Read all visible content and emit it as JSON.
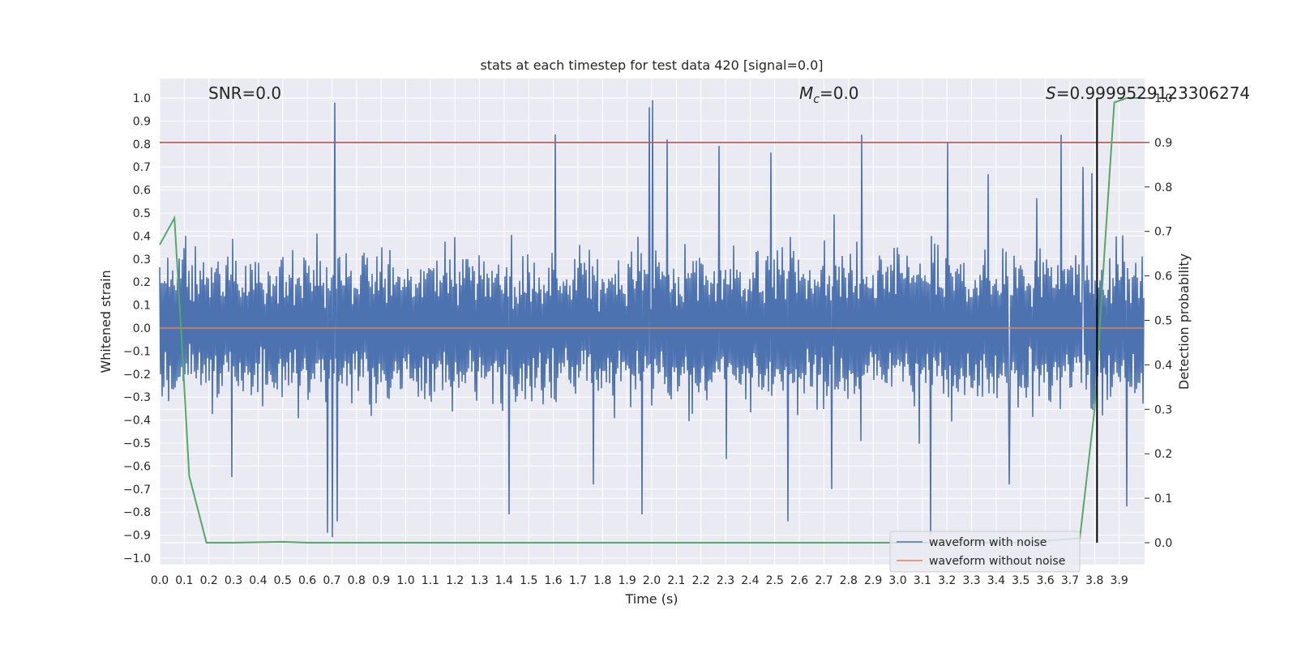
{
  "chart_data": {
    "type": "line",
    "title": "stats at each timestep for test data 420 [signal=0.0]",
    "xlabel": "Time (s)",
    "ylabel": "Whitened strain",
    "y2label": "Detection probability",
    "xlim": [
      0.0,
      4.0
    ],
    "ylim": [
      -1.05,
      1.1
    ],
    "y2lim": [
      -0.05,
      1.0
    ],
    "x_ticks": [
      "0.0",
      "0.1",
      "0.2",
      "0.3",
      "0.4",
      "0.5",
      "0.6",
      "0.7",
      "0.8",
      "0.9",
      "1.0",
      "1.1",
      "1.2",
      "1.3",
      "1.4",
      "1.5",
      "1.6",
      "1.7",
      "1.8",
      "1.9",
      "2.0",
      "2.1",
      "2.2",
      "2.3",
      "2.4",
      "2.5",
      "2.6",
      "2.7",
      "2.8",
      "2.9",
      "3.0",
      "3.1",
      "3.2",
      "3.3",
      "3.4",
      "3.5",
      "3.6",
      "3.7",
      "3.8",
      "3.9"
    ],
    "y_ticks": [
      "1.0",
      "0.9",
      "0.8",
      "0.7",
      "0.6",
      "0.5",
      "0.4",
      "0.3",
      "0.2",
      "0.1",
      "0.0",
      "-0.1",
      "-0.2",
      "-0.3",
      "-0.4",
      "-0.5",
      "-0.6",
      "-0.7",
      "-0.8",
      "-0.9",
      "-1.0"
    ],
    "y2_ticks": [
      "1.0",
      "0.9",
      "0.8",
      "0.7",
      "0.6",
      "0.5",
      "0.4",
      "0.3",
      "0.2",
      "0.1",
      "0.0"
    ],
    "grid": true,
    "legend_position": "bottom-right",
    "annotations": {
      "snr": "SNR=0.0",
      "mc_symbol": "M",
      "mc_sub": "c",
      "mc_value": "=0.0",
      "s_symbol": "S",
      "s_value": "=0.9999529123306274"
    },
    "series": [
      {
        "name": "waveform with noise",
        "axis": "left",
        "color": "#4c72b0",
        "style": "dense noise, roughly ±0.3 typical with peaks near ±1.0",
        "peaks_x": [
          0.71,
          1.99,
          2.0,
          2.06,
          2.85,
          3.2,
          3.66,
          3.75
        ],
        "peaks_y": [
          0.98,
          0.96,
          0.99,
          0.82,
          0.84,
          0.81,
          0.84,
          0.7
        ],
        "troughs_x": [
          0.68,
          0.7,
          0.72,
          1.42,
          1.96,
          2.55,
          2.73,
          3.13,
          3.45
        ],
        "troughs_y": [
          -0.89,
          -0.91,
          -0.84,
          -0.81,
          -0.81,
          -0.84,
          -0.7,
          -0.9,
          -0.68
        ]
      },
      {
        "name": "waveform without noise",
        "axis": "left",
        "color": "#dd8452",
        "x": [
          0.0,
          4.0
        ],
        "y": [
          0.0,
          0.0
        ]
      },
      {
        "name": "detection probability",
        "axis": "right",
        "color": "#55a868",
        "x": [
          0.0,
          0.06,
          0.09,
          0.12,
          0.19,
          0.3,
          0.5,
          0.6,
          1.0,
          2.0,
          3.0,
          3.5,
          3.74,
          3.8,
          3.84,
          3.88,
          3.93,
          4.0
        ],
        "y": [
          0.67,
          0.73,
          0.45,
          0.15,
          0.0,
          0.0,
          0.002,
          0.0,
          0.0,
          0.0,
          0.0,
          0.0,
          0.01,
          0.3,
          0.65,
          0.99,
          1.0,
          1.0
        ]
      }
    ],
    "reference_lines": {
      "threshold_right_axis": 0.9,
      "threshold_color": "#c44e52",
      "marker_time": 3.81,
      "marker_color": "#000000"
    }
  }
}
